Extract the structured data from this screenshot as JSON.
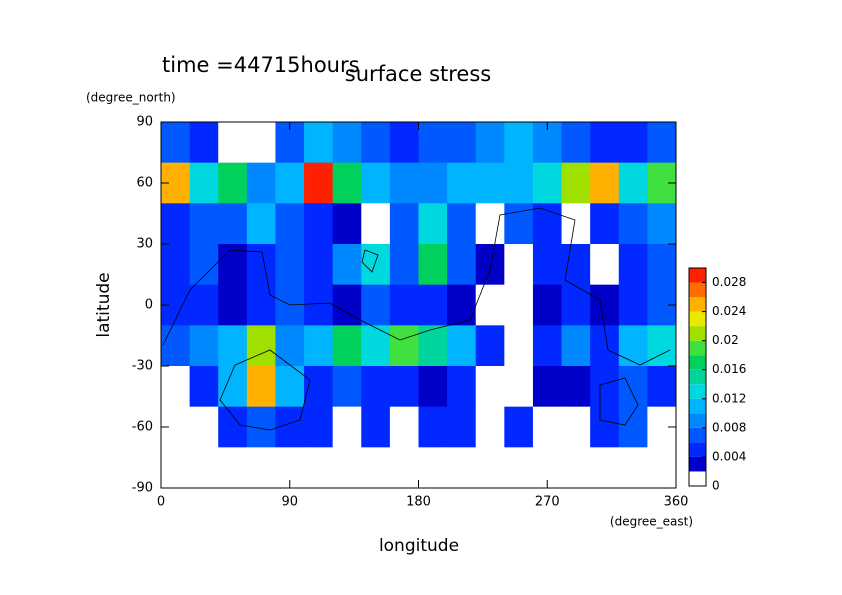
{
  "chart_data": {
    "type": "contour",
    "title": "surface stress",
    "subtitle": "time =44715hours",
    "x_label": "longitude",
    "x_unit": "(degree_east)",
    "y_label": "latitude",
    "y_unit": "(degree_north)",
    "xlim": [
      0,
      360
    ],
    "xticks": [
      0,
      90,
      180,
      270,
      360
    ],
    "ylim": [
      -90,
      90
    ],
    "yticks": [
      -90,
      -60,
      -30,
      0,
      30,
      60,
      90
    ],
    "x": [
      10,
      30,
      50,
      70,
      90,
      110,
      130,
      150,
      170,
      190,
      210,
      230,
      250,
      270,
      290,
      310,
      330,
      350
    ],
    "y": [
      80,
      60,
      40,
      20,
      0,
      -20,
      -40,
      -60,
      -80
    ],
    "z": [
      [
        0.006,
        0.004,
        0.001,
        0.001,
        0.006,
        0.01,
        0.008,
        0.006,
        0.005,
        0.006,
        0.006,
        0.008,
        0.01,
        0.008,
        0.006,
        0.005,
        0.004,
        0.006
      ],
      [
        0.024,
        0.012,
        0.016,
        0.008,
        0.01,
        0.028,
        0.016,
        0.01,
        0.008,
        0.008,
        0.01,
        0.01,
        0.01,
        0.012,
        0.02,
        0.024,
        0.012,
        0.018
      ],
      [
        0.004,
        0.006,
        0.006,
        0.01,
        0.006,
        0.004,
        0.003,
        0.001,
        0.006,
        0.012,
        0.006,
        0.001,
        0.006,
        0.004,
        0.001,
        0.004,
        0.006,
        0.008
      ],
      [
        0.004,
        0.006,
        0.002,
        0.004,
        0.006,
        0.004,
        0.008,
        0.012,
        0.006,
        0.016,
        0.006,
        0.003,
        0.001,
        0.004,
        0.004,
        0.001,
        0.004,
        0.006
      ],
      [
        0.004,
        0.004,
        0.002,
        0.004,
        0.006,
        0.004,
        0.003,
        0.006,
        0.004,
        0.004,
        0.003,
        0.001,
        0.001,
        0.003,
        0.004,
        0.003,
        0.004,
        0.006
      ],
      [
        0.006,
        0.008,
        0.01,
        0.02,
        0.008,
        0.01,
        0.016,
        0.012,
        0.018,
        0.014,
        0.01,
        0.004,
        0.001,
        0.004,
        0.008,
        0.004,
        0.01,
        0.012
      ],
      [
        0.001,
        0.004,
        0.01,
        0.024,
        0.01,
        0.004,
        0.006,
        0.004,
        0.004,
        0.003,
        0.004,
        0.001,
        0.001,
        0.003,
        0.002,
        0.004,
        0.006,
        0.004
      ],
      [
        0.001,
        0.001,
        0.004,
        0.006,
        0.004,
        0.004,
        0.001,
        0.004,
        0.001,
        0.004,
        0.004,
        0.001,
        0.004,
        0.001,
        0.001,
        0.004,
        0.006,
        0.001
      ],
      [
        0,
        0,
        0,
        0,
        0,
        0,
        0,
        0,
        0,
        0,
        0,
        0,
        0,
        0,
        0,
        0,
        0,
        0
      ]
    ],
    "levels": [
      0,
      0.002,
      0.004,
      0.006,
      0.008,
      0.01,
      0.012,
      0.014,
      0.016,
      0.018,
      0.02,
      0.022,
      0.024,
      0.026,
      0.028,
      0.03
    ],
    "colors": [
      "#ffffff",
      "#0000c8",
      "#0028ff",
      "#0058ff",
      "#0088ff",
      "#00b4ff",
      "#00d8e0",
      "#00d49c",
      "#00d05c",
      "#40e040",
      "#a0e000",
      "#e8e800",
      "#ffb000",
      "#ff6c00",
      "#ff2000"
    ],
    "colorbar_ticks": [
      0,
      0.004,
      0.008,
      0.012,
      0.016,
      0.02,
      0.024,
      0.028
    ]
  }
}
